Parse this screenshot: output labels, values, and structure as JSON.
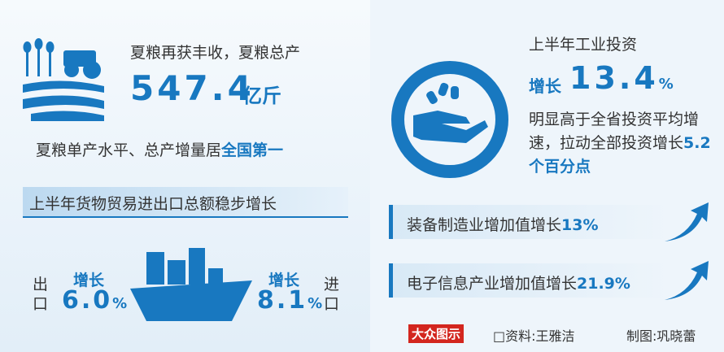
{
  "harvest": {
    "intro": "夏粮再获丰收，夏粮总产",
    "amount": "547.4",
    "unit": "亿斤",
    "rank_text": "夏粮单产水平、总产增量居",
    "rank": "全国第一"
  },
  "trade": {
    "title": "上半年货物贸易进出口总额稳步增长",
    "export": {
      "label": "出口",
      "growth_label": "增长",
      "value": "6.0",
      "unit": "%"
    },
    "import": {
      "label": "进口",
      "growth_label": "增长",
      "value": "8.1",
      "unit": "%"
    }
  },
  "investment": {
    "title": "上半年工业投资",
    "growth_label": "增长",
    "value": "13.4",
    "unit": "%",
    "note": "明显高于全省投资平均增速，拉动全部投资增长",
    "note_highlight": "5.2个百分点"
  },
  "industries": [
    {
      "label": "装备制造业增加值增长",
      "value": "13%"
    },
    {
      "label": "电子信息产业增加值增长",
      "value": "21.9%"
    }
  ],
  "footer": {
    "logo": "大众图示",
    "source": "□资料:王雅洁",
    "designer": "制图:巩晓蕾"
  }
}
